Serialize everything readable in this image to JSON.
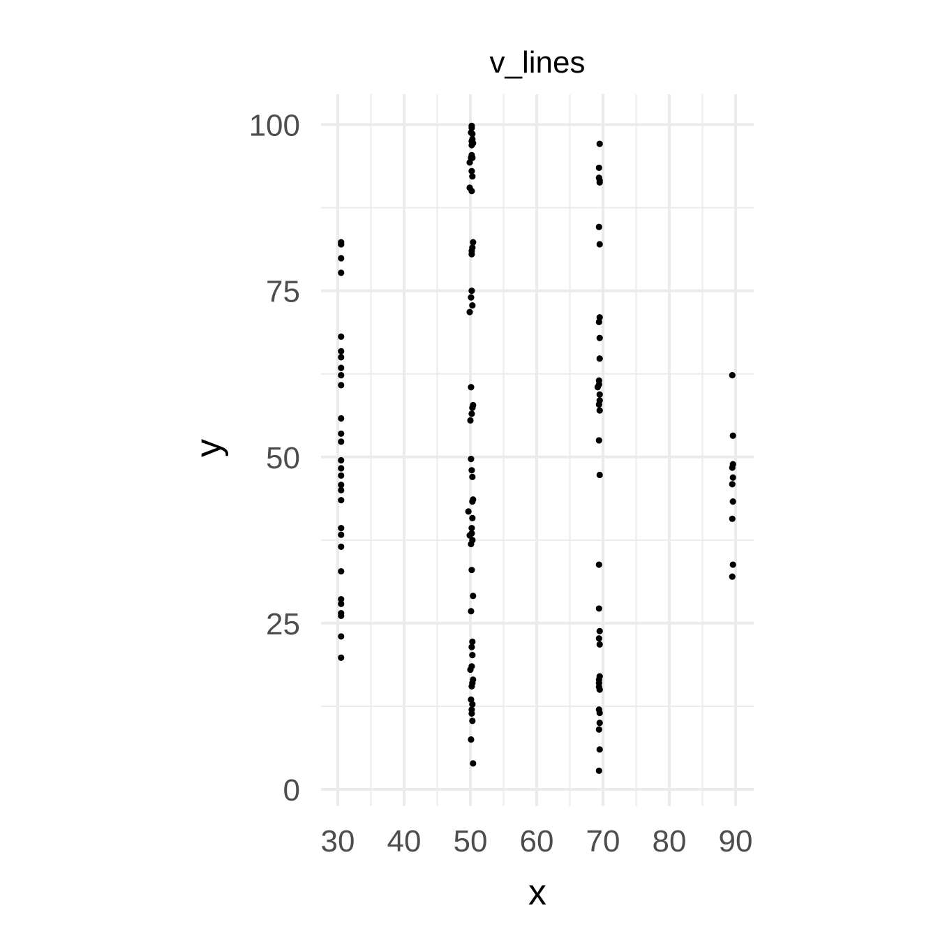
{
  "chart_data": {
    "type": "scatter",
    "title": "v_lines",
    "xlabel": "x",
    "ylabel": "y",
    "xlim": [
      28,
      92
    ],
    "ylim": [
      -2.5,
      105
    ],
    "x_ticks": [
      30,
      40,
      50,
      60,
      70,
      80,
      90
    ],
    "y_ticks": [
      0,
      25,
      50,
      75,
      100
    ],
    "x_tick_labels": [
      "30",
      "40",
      "50",
      "60",
      "70",
      "80",
      "90"
    ],
    "y_tick_labels": [
      "0",
      "25",
      "50",
      "75",
      "100"
    ],
    "grid": true,
    "point_color": "#000000",
    "series": [
      {
        "x": [
          30.5,
          30.5,
          30.5,
          30.5,
          30.5,
          30.5,
          30.5,
          30.5,
          30.5,
          30.5,
          30.5,
          30.5,
          30.5,
          30.5,
          30.5,
          30.5,
          30.5,
          30.5,
          30.5,
          30.5,
          30.5,
          30.5,
          30.5,
          30.5,
          30.5,
          30.5,
          30.5,
          30.5,
          30.5,
          30.5,
          50.2,
          50.3,
          50.2,
          50.4,
          50.1,
          50.3,
          50.2,
          50.3,
          49.9,
          50.2,
          50.4,
          50.3,
          50.2,
          50.2,
          50.2,
          50.1,
          50.3,
          49.9,
          50.1,
          50.4,
          50.3,
          50.2,
          50.0,
          50.1,
          50.2,
          50.3,
          50.4,
          50.3,
          50.3,
          49.7,
          50.2,
          50.2,
          49.9,
          50.3,
          50.1,
          50.2,
          50.4,
          50.1,
          50.3,
          50.2,
          50.3,
          50.2,
          50.0,
          50.4,
          50.3,
          50.2,
          50.1,
          50.3,
          50.2,
          50.2,
          50.3,
          50.1,
          50.4,
          50.2,
          50.1,
          50.3,
          50.2,
          50.2,
          49.9,
          69.5,
          69.4,
          69.4,
          69.5,
          69.5,
          69.4,
          69.5,
          69.5,
          69.4,
          69.5,
          69.5,
          69.4,
          69.2,
          69.5,
          69.5,
          69.4,
          69.5,
          69.4,
          69.5,
          69.4,
          69.4,
          69.5,
          69.4,
          69.5,
          69.5,
          69.4,
          69.4,
          69.4,
          69.5,
          69.4,
          69.5,
          69.5,
          69.4,
          69.5,
          69.4,
          69.4,
          89.5,
          89.6,
          89.6,
          89.5,
          89.6,
          89.5,
          89.6,
          89.5,
          89.6,
          89.5
        ],
        "y": [
          82.3,
          82.0,
          79.9,
          77.7,
          68.1,
          65.9,
          65.0,
          63.4,
          62.3,
          60.8,
          55.8,
          53.5,
          52.3,
          49.5,
          48.3,
          47.2,
          45.8,
          45.0,
          43.5,
          39.3,
          38.3,
          36.5,
          32.8,
          28.6,
          27.9,
          26.5,
          26.1,
          23.0,
          19.8,
          82.0,
          99.8,
          98.6,
          97.5,
          97.2,
          95.0,
          95.0,
          93.0,
          92.2,
          90.5,
          90.0,
          82.3,
          81.5,
          81.0,
          80.5,
          75.0,
          74.0,
          72.8,
          71.8,
          60.5,
          57.8,
          57.4,
          56.5,
          55.5,
          49.7,
          48.0,
          47.0,
          43.6,
          43.3,
          40.8,
          41.8,
          39.3,
          38.5,
          38.2,
          37.5,
          36.9,
          33.0,
          29.1,
          26.8,
          22.2,
          21.4,
          20.2,
          18.5,
          18.0,
          16.5,
          16.0,
          15.5,
          13.5,
          12.8,
          12.0,
          11.4,
          10.3,
          7.5,
          3.9,
          99.5,
          98.8,
          97.8,
          96.9,
          95.4,
          94.3,
          97.1,
          93.5,
          92.0,
          91.6,
          91.3,
          84.6,
          82.0,
          71.0,
          70.3,
          67.9,
          64.8,
          61.5,
          60.5,
          59.4,
          58.5,
          57.9,
          57.0,
          52.5,
          47.3,
          33.8,
          27.2,
          23.8,
          22.7,
          21.8,
          17.0,
          16.5,
          16.0,
          15.4,
          15.0,
          12.0,
          11.5,
          10.0,
          9.0,
          6.0,
          2.8,
          60.9,
          62.3,
          53.2,
          48.9,
          48.4,
          46.9,
          45.9,
          43.3,
          40.7,
          33.8,
          32.0
        ]
      }
    ]
  }
}
